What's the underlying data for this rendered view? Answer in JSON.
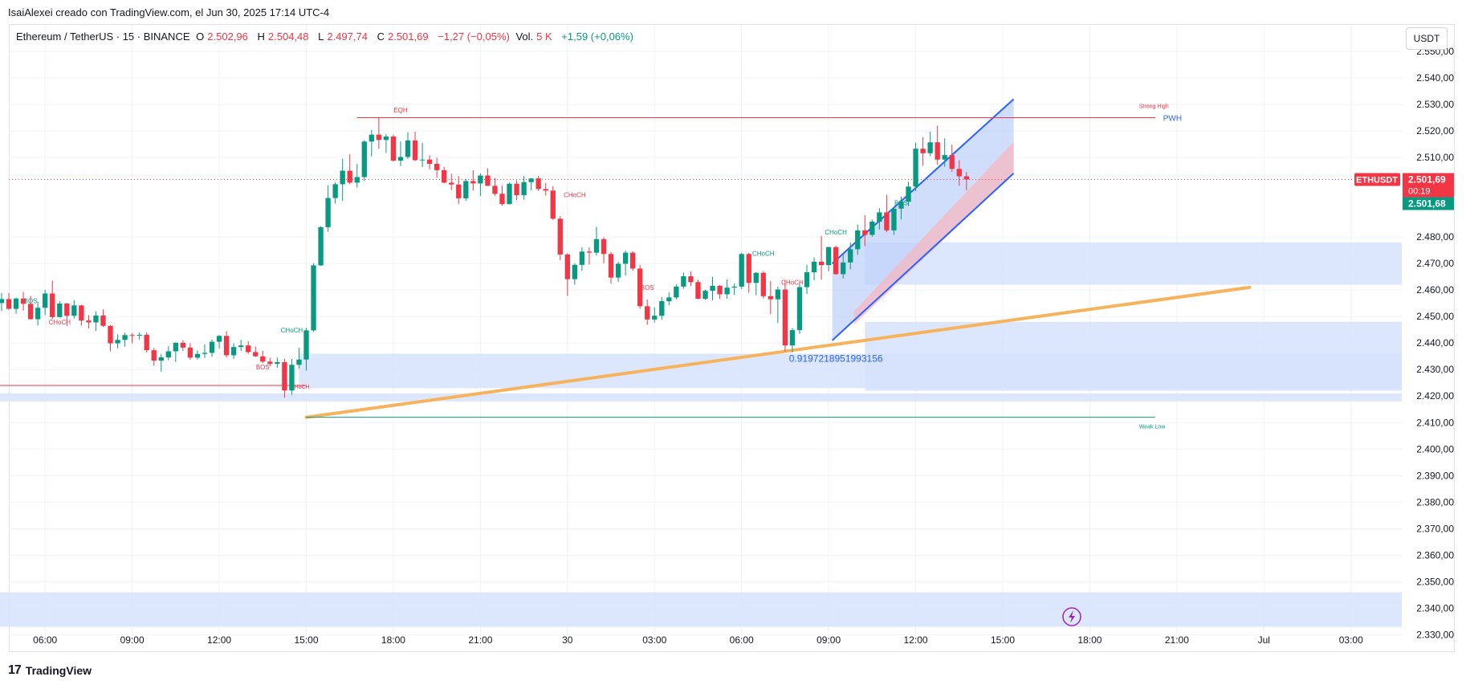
{
  "header": {
    "attribution": "IsaiAlexei creado con TradingView.com, el Jun 30, 2025 17:14 UTC-4",
    "symbol": "Ethereum / TetherUS · 15 · BINANCE",
    "o_label": "O",
    "o_value": "2.502,96",
    "h_label": "H",
    "h_value": "2.504,48",
    "l_label": "L",
    "l_value": "2.497,74",
    "c_label": "C",
    "c_value": "2.501,69",
    "change": "−1,27 (−0,05%)",
    "vol_label": "Vol.",
    "vol_value": "5 K",
    "vol_change": "+1,59 (+0,06%)",
    "currency_button": "USDT"
  },
  "footer": {
    "brand": "TradingView"
  },
  "colors": {
    "up": "#089981",
    "down": "#f23645",
    "zone": "#d6e2fb",
    "trend": "#f7b35b",
    "channel": "#2962ff",
    "grid": "#f0f3fa"
  },
  "chart_data": {
    "type": "candlestick",
    "symbol": "ETHUSDT",
    "interval": "15",
    "y_axis": {
      "ticks": [
        "2.330,00",
        "2.340,00",
        "2.350,00",
        "2.360,00",
        "2.370,00",
        "2.380,00",
        "2.390,00",
        "2.400,00",
        "2.410,00",
        "2.420,00",
        "2.430,00",
        "2.440,00",
        "2.450,00",
        "2.460,00",
        "2.470,00",
        "2.480,00",
        "2.510,00",
        "2.520,00",
        "2.530,00",
        "2.540,00",
        "2.550,00"
      ],
      "tick_values": [
        2330,
        2340,
        2350,
        2360,
        2370,
        2380,
        2390,
        2400,
        2410,
        2420,
        2430,
        2440,
        2450,
        2460,
        2470,
        2480,
        2510,
        2520,
        2530,
        2540,
        2550
      ],
      "range": [
        2328,
        2560
      ]
    },
    "x_axis": {
      "ticks": [
        "06:00",
        "09:00",
        "12:00",
        "15:00",
        "18:00",
        "21:00",
        "30",
        "03:00",
        "06:00",
        "09:00",
        "12:00",
        "15:00",
        "18:00",
        "21:00",
        "Jul",
        "03:00"
      ],
      "tick_index": [
        12,
        24,
        36,
        48,
        60,
        72,
        84,
        96,
        108,
        120,
        132,
        144,
        156,
        168,
        180,
        192
      ],
      "range": [
        7,
        199
      ]
    },
    "price_labels": {
      "symbol_tag": "ETHUSDT",
      "last_price": "2.501,69",
      "countdown": "00:19",
      "second_price": "2.501,68",
      "value": 2501.69
    },
    "candles": [
      [
        2446.5,
        2447.8,
        2441.2,
        2443.3
      ],
      [
        2443.3,
        2447.7,
        2441.8,
        2446.3
      ],
      [
        2446.3,
        2452.3,
        2442.2,
        2451.4
      ],
      [
        2451.4,
        2458.2,
        2445.8,
        2446.8
      ],
      [
        2446.8,
        2459.2,
        2445.1,
        2455.1
      ],
      [
        2455.1,
        2458.9,
        2452.1,
        2456.6
      ],
      [
        2456.6,
        2458.8,
        2452.6,
        2452.9
      ],
      [
        2452.9,
        2457.2,
        2451.1,
        2456.8
      ],
      [
        2456.8,
        2459.3,
        2452.2,
        2454.8
      ],
      [
        2454.8,
        2457.8,
        2448.9,
        2449.0
      ],
      [
        2449.0,
        2455.6,
        2446.6,
        2453.3
      ],
      [
        2453.3,
        2460.1,
        2450.5,
        2458.7
      ],
      [
        2458.7,
        2463.5,
        2449.0,
        2449.8
      ],
      [
        2449.8,
        2455.8,
        2449.6,
        2454.9
      ],
      [
        2454.9,
        2455.1,
        2446.4,
        2450.3
      ],
      [
        2450.3,
        2456.2,
        2449.3,
        2454.2
      ],
      [
        2454.2,
        2454.4,
        2446.6,
        2448.5
      ],
      [
        2448.5,
        2450.5,
        2445.6,
        2447.8
      ],
      [
        2447.8,
        2452.0,
        2444.6,
        2450.4
      ],
      [
        2450.4,
        2452.7,
        2446.1,
        2446.5
      ],
      [
        2446.5,
        2446.8,
        2436.9,
        2439.9
      ],
      [
        2439.9,
        2443.3,
        2438.0,
        2441.2
      ],
      [
        2441.2,
        2443.9,
        2438.6,
        2443.0
      ],
      [
        2443.0,
        2443.8,
        2439.9,
        2442.9
      ],
      [
        2442.9,
        2444.1,
        2441.3,
        2443.1
      ],
      [
        2443.1,
        2444.1,
        2436.5,
        2437.3
      ],
      [
        2437.3,
        2438.2,
        2431.4,
        2433.4
      ],
      [
        2433.4,
        2435.9,
        2429.2,
        2434.6
      ],
      [
        2434.6,
        2438.8,
        2433.5,
        2436.9
      ],
      [
        2436.9,
        2440.3,
        2432.9,
        2440.1
      ],
      [
        2440.1,
        2441.1,
        2437.0,
        2438.3
      ],
      [
        2438.3,
        2439.9,
        2433.7,
        2434.5
      ],
      [
        2434.5,
        2437.2,
        2433.8,
        2435.9
      ],
      [
        2435.9,
        2439.5,
        2434.4,
        2436.3
      ],
      [
        2436.3,
        2441.3,
        2434.8,
        2440.5
      ],
      [
        2440.5,
        2443.0,
        2438.0,
        2442.7
      ],
      [
        2442.7,
        2444.5,
        2434.5,
        2435.4
      ],
      [
        2435.4,
        2439.9,
        2434.1,
        2438.5
      ],
      [
        2438.5,
        2441.2,
        2437.0,
        2439.1
      ],
      [
        2439.1,
        2440.7,
        2435.9,
        2436.6
      ],
      [
        2436.6,
        2438.7,
        2434.8,
        2435.0
      ],
      [
        2435.0,
        2437.1,
        2432.4,
        2433.0
      ],
      [
        2433.0,
        2434.5,
        2431.2,
        2432.2
      ],
      [
        2432.2,
        2434.5,
        2430.7,
        2432.8
      ],
      [
        2432.8,
        2434.1,
        2419.4,
        2422.1
      ],
      [
        2422.1,
        2434.0,
        2420.5,
        2431.8
      ],
      [
        2431.8,
        2438.2,
        2430.4,
        2433.8
      ],
      [
        2433.8,
        2445.7,
        2429.6,
        2444.8
      ],
      [
        2444.8,
        2470.1,
        2444.3,
        2469.3
      ],
      [
        2469.3,
        2484.1,
        2469.1,
        2483.7
      ],
      [
        2483.7,
        2499.5,
        2482.0,
        2494.7
      ],
      [
        2494.7,
        2500.6,
        2492.6,
        2499.9
      ],
      [
        2499.9,
        2509.5,
        2493.6,
        2505.0
      ],
      [
        2505.0,
        2511.2,
        2499.9,
        2500.5
      ],
      [
        2500.5,
        2507.5,
        2498.6,
        2502.6
      ],
      [
        2502.6,
        2516.6,
        2501.1,
        2516.0
      ],
      [
        2516.0,
        2520.4,
        2510.4,
        2518.6
      ],
      [
        2518.6,
        2525.1,
        2513.3,
        2516.6
      ],
      [
        2516.6,
        2518.8,
        2511.7,
        2517.9
      ],
      [
        2517.9,
        2518.6,
        2508.4,
        2508.8
      ],
      [
        2508.8,
        2516.1,
        2506.8,
        2510.2
      ],
      [
        2510.2,
        2519.4,
        2509.4,
        2516.4
      ],
      [
        2516.4,
        2519.7,
        2508.6,
        2509.0
      ],
      [
        2509.0,
        2515.5,
        2506.4,
        2509.2
      ],
      [
        2509.2,
        2510.8,
        2505.6,
        2507.6
      ],
      [
        2507.6,
        2509.9,
        2502.3,
        2505.2
      ],
      [
        2505.2,
        2506.5,
        2500.2,
        2500.5
      ],
      [
        2500.5,
        2503.9,
        2497.7,
        2499.8
      ],
      [
        2499.8,
        2503.0,
        2492.5,
        2494.6
      ],
      [
        2494.6,
        2501.9,
        2493.6,
        2501.1
      ],
      [
        2501.1,
        2505.2,
        2497.6,
        2500.2
      ],
      [
        2500.2,
        2504.0,
        2495.4,
        2503.2
      ],
      [
        2503.2,
        2505.9,
        2499.2,
        2499.3
      ],
      [
        2499.3,
        2502.2,
        2495.5,
        2496.3
      ],
      [
        2496.3,
        2499.4,
        2491.8,
        2492.4
      ],
      [
        2492.4,
        2500.5,
        2492.3,
        2500.1
      ],
      [
        2500.1,
        2501.4,
        2494.0,
        2495.8
      ],
      [
        2495.8,
        2503.1,
        2494.1,
        2500.7
      ],
      [
        2500.7,
        2502.2,
        2497.6,
        2502.1
      ],
      [
        2502.1,
        2503.0,
        2497.4,
        2498.1
      ],
      [
        2498.1,
        2500.4,
        2495.6,
        2497.5
      ],
      [
        2497.5,
        2499.2,
        2486.5,
        2486.9
      ],
      [
        2486.9,
        2487.9,
        2471.3,
        2473.4
      ],
      [
        2473.4,
        2473.9,
        2457.8,
        2464.1
      ],
      [
        2464.1,
        2470.2,
        2462.0,
        2469.5
      ],
      [
        2469.5,
        2476.1,
        2467.2,
        2474.5
      ],
      [
        2474.5,
        2476.1,
        2469.6,
        2474.1
      ],
      [
        2474.1,
        2483.8,
        2473.0,
        2479.2
      ],
      [
        2479.2,
        2479.9,
        2470.1,
        2473.6
      ],
      [
        2473.6,
        2474.4,
        2462.4,
        2464.7
      ],
      [
        2464.7,
        2470.7,
        2463.1,
        2469.9
      ],
      [
        2469.9,
        2474.9,
        2465.5,
        2474.1
      ],
      [
        2474.1,
        2474.6,
        2467.3,
        2468.1
      ],
      [
        2468.1,
        2469.4,
        2452.9,
        2453.9
      ],
      [
        2453.9,
        2456.4,
        2446.9,
        2448.9
      ],
      [
        2448.9,
        2453.5,
        2447.7,
        2450.3
      ],
      [
        2450.3,
        2457.4,
        2448.8,
        2455.8
      ],
      [
        2455.8,
        2459.1,
        2454.3,
        2457.2
      ],
      [
        2457.2,
        2462.2,
        2456.4,
        2461.3
      ],
      [
        2461.3,
        2466.6,
        2460.5,
        2465.2
      ],
      [
        2465.2,
        2467.0,
        2461.5,
        2463.0
      ],
      [
        2463.0,
        2463.9,
        2456.6,
        2456.7
      ],
      [
        2456.7,
        2460.0,
        2456.3,
        2459.7
      ],
      [
        2459.7,
        2465.0,
        2456.1,
        2461.6
      ],
      [
        2461.6,
        2461.9,
        2456.7,
        2458.4
      ],
      [
        2458.4,
        2464.0,
        2456.7,
        2460.9
      ],
      [
        2460.9,
        2462.5,
        2458.1,
        2461.3
      ],
      [
        2461.3,
        2474.0,
        2460.4,
        2473.6
      ],
      [
        2473.6,
        2474.0,
        2459.0,
        2462.7
      ],
      [
        2462.7,
        2466.7,
        2458.0,
        2466.5
      ],
      [
        2466.5,
        2467.1,
        2456.8,
        2457.7
      ],
      [
        2457.7,
        2463.4,
        2450.9,
        2456.5
      ],
      [
        2456.5,
        2461.3,
        2447.5,
        2460.2
      ],
      [
        2460.2,
        2463.8,
        2436.9,
        2439.1
      ],
      [
        2439.1,
        2445.7,
        2436.6,
        2444.9
      ],
      [
        2444.9,
        2462.9,
        2443.5,
        2461.1
      ],
      [
        2461.1,
        2469.5,
        2458.5,
        2466.7
      ],
      [
        2466.7,
        2472.3,
        2463.7,
        2470.7
      ],
      [
        2470.7,
        2480.4,
        2463.9,
        2469.4
      ],
      [
        2469.4,
        2476.3,
        2467.1,
        2476.2
      ],
      [
        2476.2,
        2476.7,
        2465.8,
        2466.0
      ],
      [
        2466.0,
        2473.4,
        2464.4,
        2470.4
      ],
      [
        2470.4,
        2477.9,
        2467.8,
        2475.4
      ],
      [
        2475.4,
        2484.7,
        2473.3,
        2482.5
      ],
      [
        2482.5,
        2488.2,
        2476.6,
        2480.8
      ],
      [
        2480.8,
        2486.6,
        2480.1,
        2485.8
      ],
      [
        2485.8,
        2490.9,
        2482.8,
        2489.3
      ],
      [
        2489.3,
        2495.9,
        2481.8,
        2482.5
      ],
      [
        2482.5,
        2491.1,
        2480.8,
        2490.7
      ],
      [
        2490.7,
        2495.2,
        2486.6,
        2493.3
      ],
      [
        2493.3,
        2500.8,
        2491.7,
        2499.0
      ],
      [
        2499.0,
        2515.6,
        2497.3,
        2513.3
      ],
      [
        2513.3,
        2517.7,
        2506.9,
        2511.6
      ],
      [
        2511.6,
        2519.7,
        2510.5,
        2515.7
      ],
      [
        2515.7,
        2522.0,
        2507.2,
        2509.2
      ],
      [
        2509.2,
        2517.2,
        2506.5,
        2510.9
      ],
      [
        2510.9,
        2514.8,
        2504.6,
        2505.7
      ],
      [
        2505.7,
        2508.9,
        2499.3,
        2502.9
      ],
      [
        2502.9,
        2504.5,
        2497.7,
        2501.7
      ]
    ],
    "candle_offset": 1,
    "zones": [
      {
        "x0": 47,
        "x1": 199,
        "y0": 2423,
        "y1": 2436
      },
      {
        "x0": 1,
        "x1": 199,
        "y0": 2418,
        "y1": 2421
      },
      {
        "x0": 125,
        "x1": 199,
        "y0": 2422,
        "y1": 2448
      },
      {
        "x0": 125,
        "x1": 199,
        "y0": 2462,
        "y1": 2478
      },
      {
        "x0": 1,
        "x1": 199,
        "y0": 2333,
        "y1": 2346
      }
    ],
    "trendline": {
      "x0": 48,
      "x1": 178,
      "y0": 2412,
      "y1": 2461
    },
    "channel": {
      "x0": 120.5,
      "x1": 145.5,
      "lower0": 2441,
      "lower1": 2504,
      "upper0": 2470,
      "upper1": 2532
    },
    "levels": [
      {
        "name": "PWH",
        "value": 2525,
        "x0": 55,
        "x1": 165,
        "color": "#2962ff",
        "label": "PWH"
      },
      {
        "name": "Strong High",
        "value": 2525,
        "x0": 55,
        "x1": 165,
        "color": "#f23645",
        "label": "Strong High"
      },
      {
        "name": "Weak Low",
        "value": 2412,
        "x0": 48,
        "x1": 165,
        "color": "#089981",
        "label": "Weak Low"
      },
      {
        "name": "CHoCH left",
        "value": 2424,
        "x0": 1,
        "x1": 48,
        "color": "#f23645",
        "label": "CHoCH"
      }
    ],
    "annotations": [
      {
        "text": "BOS",
        "x": 10,
        "y": 2455,
        "color": "#089981"
      },
      {
        "text": "CHoCH",
        "x": 14,
        "y": 2447,
        "color": "#f23645"
      },
      {
        "text": "CHoCH",
        "x": 46,
        "y": 2444,
        "color": "#089981"
      },
      {
        "text": "BOS",
        "x": 42,
        "y": 2430,
        "color": "#f23645"
      },
      {
        "text": "EQH",
        "x": 61,
        "y": 2527,
        "color": "#f23645"
      },
      {
        "text": "CHoCH",
        "x": 85,
        "y": 2495,
        "color": "#f23645"
      },
      {
        "text": "BOS",
        "x": 95,
        "y": 2460,
        "color": "#f23645"
      },
      {
        "text": "CHoCH",
        "x": 111,
        "y": 2473,
        "color": "#089981"
      },
      {
        "text": "CHoCH",
        "x": 115,
        "y": 2462,
        "color": "#f23645"
      },
      {
        "text": "CHoCH",
        "x": 121,
        "y": 2481,
        "color": "#089981"
      },
      {
        "text": "BOS",
        "x": 130,
        "y": 2492,
        "color": "#089981"
      },
      {
        "text": "0.9197218951993156",
        "x": 121,
        "y": 2433,
        "color": "#2962ff"
      }
    ]
  }
}
